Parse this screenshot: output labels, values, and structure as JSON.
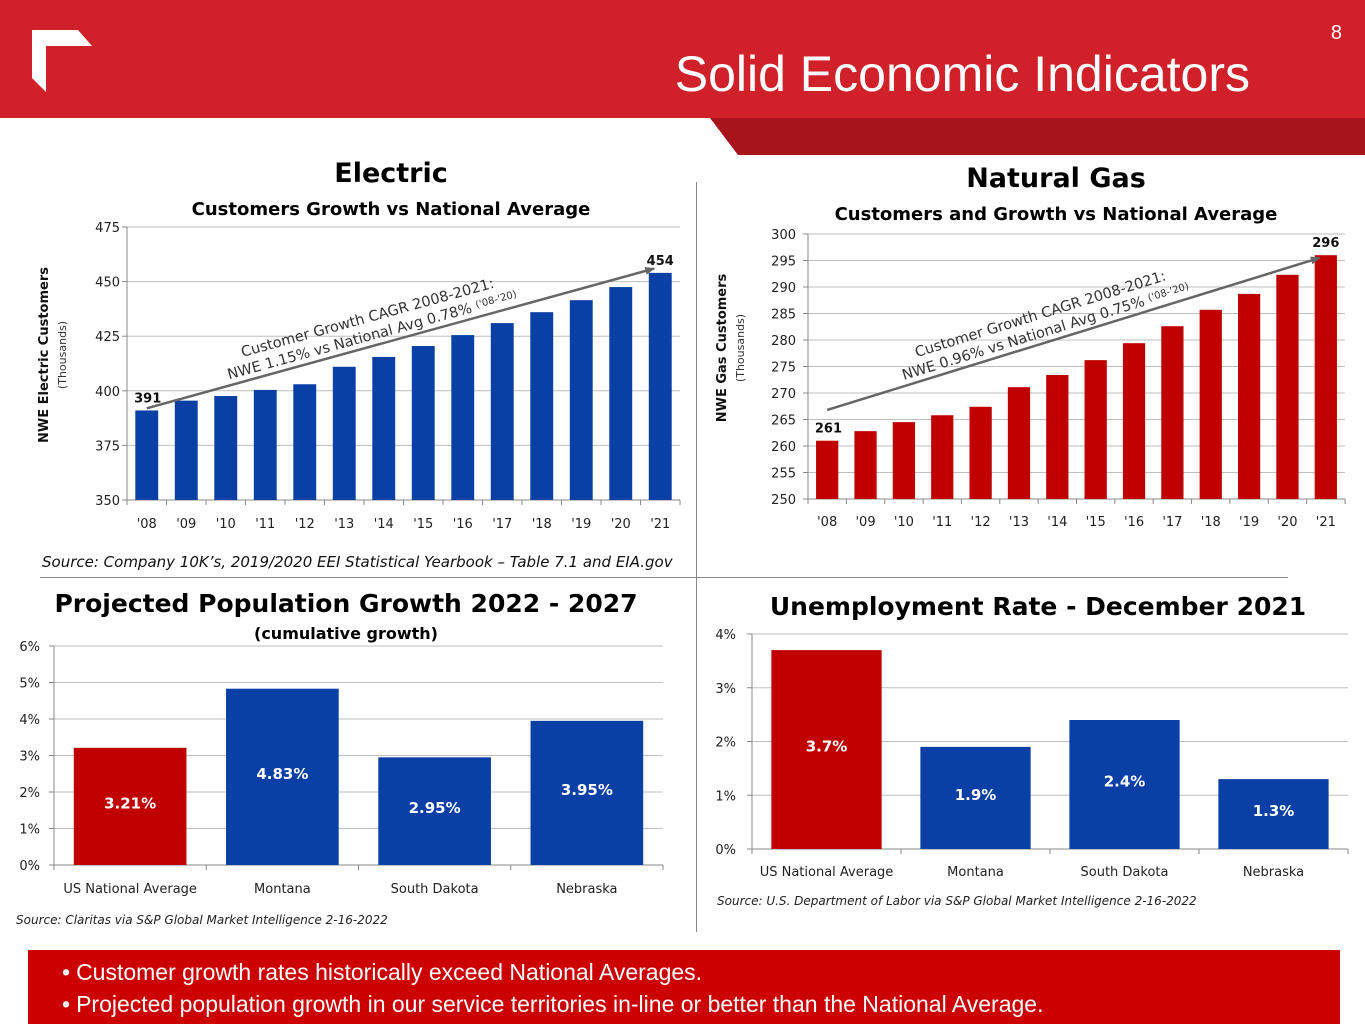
{
  "header": {
    "title": "Solid Economic Indicators",
    "page_number": "8",
    "logo_icon": "corner-bracket-logo-icon",
    "brand_color": "#D0202A",
    "stripe_color": "#A8141C"
  },
  "colors": {
    "blue": "#0A3FA5",
    "red": "#C00000",
    "grid": "#BFBFBF",
    "arrow": "#666666"
  },
  "chart_data": [
    {
      "id": "electric",
      "type": "bar",
      "title": "Electric",
      "subtitle": "Customers Growth vs National Average",
      "ylabel": "NWE Electric Customers",
      "ylabel_sub": "(Thousands)",
      "xlabel": "",
      "categories": [
        "'08",
        "'09",
        "'10",
        "'11",
        "'12",
        "'13",
        "'14",
        "'15",
        "'16",
        "'17",
        "'18",
        "'19",
        "'20",
        "'21"
      ],
      "values": [
        391,
        395.5,
        397.6,
        400.4,
        403,
        411,
        415.5,
        420.5,
        425.5,
        431,
        436,
        441.5,
        447.5,
        454
      ],
      "ylim": [
        350,
        475
      ],
      "yticks": [
        350,
        375,
        400,
        425,
        450,
        475
      ],
      "grid": true,
      "data_labels": [
        {
          "index": 0,
          "text": "391"
        },
        {
          "index": 13,
          "text": "454"
        }
      ],
      "annotation": {
        "line1": "Customer Growth CAGR 2008-2021:",
        "line2": "NWE 1.15% vs National Avg 0.78%",
        "line2_note": "('08-'20)",
        "arrow_from": [
          0,
          392
        ],
        "arrow_to": [
          13,
          456
        ]
      },
      "bar_color": "#0A3FA5",
      "source": "Source:  Company 10K’s, 2019/2020 EEI Statistical Yearbook – Table 7.1 and EIA.gov"
    },
    {
      "id": "gas",
      "type": "bar",
      "title": "Natural Gas",
      "subtitle": "Customers and Growth vs National Average",
      "ylabel": "NWE Gas Customers",
      "ylabel_sub": "(Thousands)",
      "xlabel": "",
      "categories": [
        "'08",
        "'09",
        "'10",
        "'11",
        "'12",
        "'13",
        "'14",
        "'15",
        "'16",
        "'17",
        "'18",
        "'19",
        "'20",
        "'21"
      ],
      "values": [
        261,
        262.8,
        264.5,
        265.8,
        267.4,
        271.1,
        273.4,
        276.2,
        279.4,
        282.6,
        285.7,
        288.7,
        292.3,
        296
      ],
      "ylim": [
        250,
        300
      ],
      "yticks": [
        250,
        255,
        260,
        265,
        270,
        275,
        280,
        285,
        290,
        295,
        300
      ],
      "grid": true,
      "data_labels": [
        {
          "index": 0,
          "text": "261"
        },
        {
          "index": 13,
          "text": "296"
        }
      ],
      "annotation": {
        "line1": "Customer Growth CAGR 2008-2021:",
        "line2": "NWE 0.96% vs National Avg 0.75%",
        "line2_note": "('08-'20)",
        "arrow_from": [
          0,
          266.8
        ],
        "arrow_to": [
          13,
          295.5
        ]
      },
      "bar_color": "#C00000"
    },
    {
      "id": "population",
      "type": "bar",
      "title": "Projected Population Growth 2022 - 2027",
      "subtitle": "(cumulative growth)",
      "xlabel": "",
      "ylabel": "",
      "categories": [
        "US National Average",
        "Montana",
        "South Dakota",
        "Nebraska"
      ],
      "values": [
        3.21,
        4.83,
        2.95,
        3.95
      ],
      "value_labels": [
        "3.21%",
        "4.83%",
        "2.95%",
        "3.95%"
      ],
      "bar_colors": [
        "#C00000",
        "#0A3FA5",
        "#0A3FA5",
        "#0A3FA5"
      ],
      "ylim": [
        0,
        6
      ],
      "yticks": [
        "0%",
        "1%",
        "2%",
        "3%",
        "4%",
        "5%",
        "6%"
      ],
      "grid": true,
      "source": "Source:  Claritas via S&P Global Market Intelligence 2-16-2022"
    },
    {
      "id": "unemployment",
      "type": "bar",
      "title": "Unemployment Rate - December 2021",
      "subtitle": "",
      "xlabel": "",
      "ylabel": "",
      "categories": [
        "US National Average",
        "Montana",
        "South Dakota",
        "Nebraska"
      ],
      "values": [
        3.7,
        1.9,
        2.4,
        1.3
      ],
      "value_labels": [
        "3.7%",
        "1.9%",
        "2.4%",
        "1.3%"
      ],
      "bar_colors": [
        "#C00000",
        "#0A3FA5",
        "#0A3FA5",
        "#0A3FA5"
      ],
      "ylim": [
        0,
        4
      ],
      "yticks": [
        "0%",
        "1%",
        "2%",
        "3%",
        "4%"
      ],
      "grid": true,
      "source": "Source:  U.S. Department of Labor via S&P Global Market Intelligence 2-16-2022"
    }
  ],
  "bullets": [
    "Customer growth rates historically exceed National Averages.",
    "Projected population growth in our service territories in-line or better than the National Average."
  ]
}
